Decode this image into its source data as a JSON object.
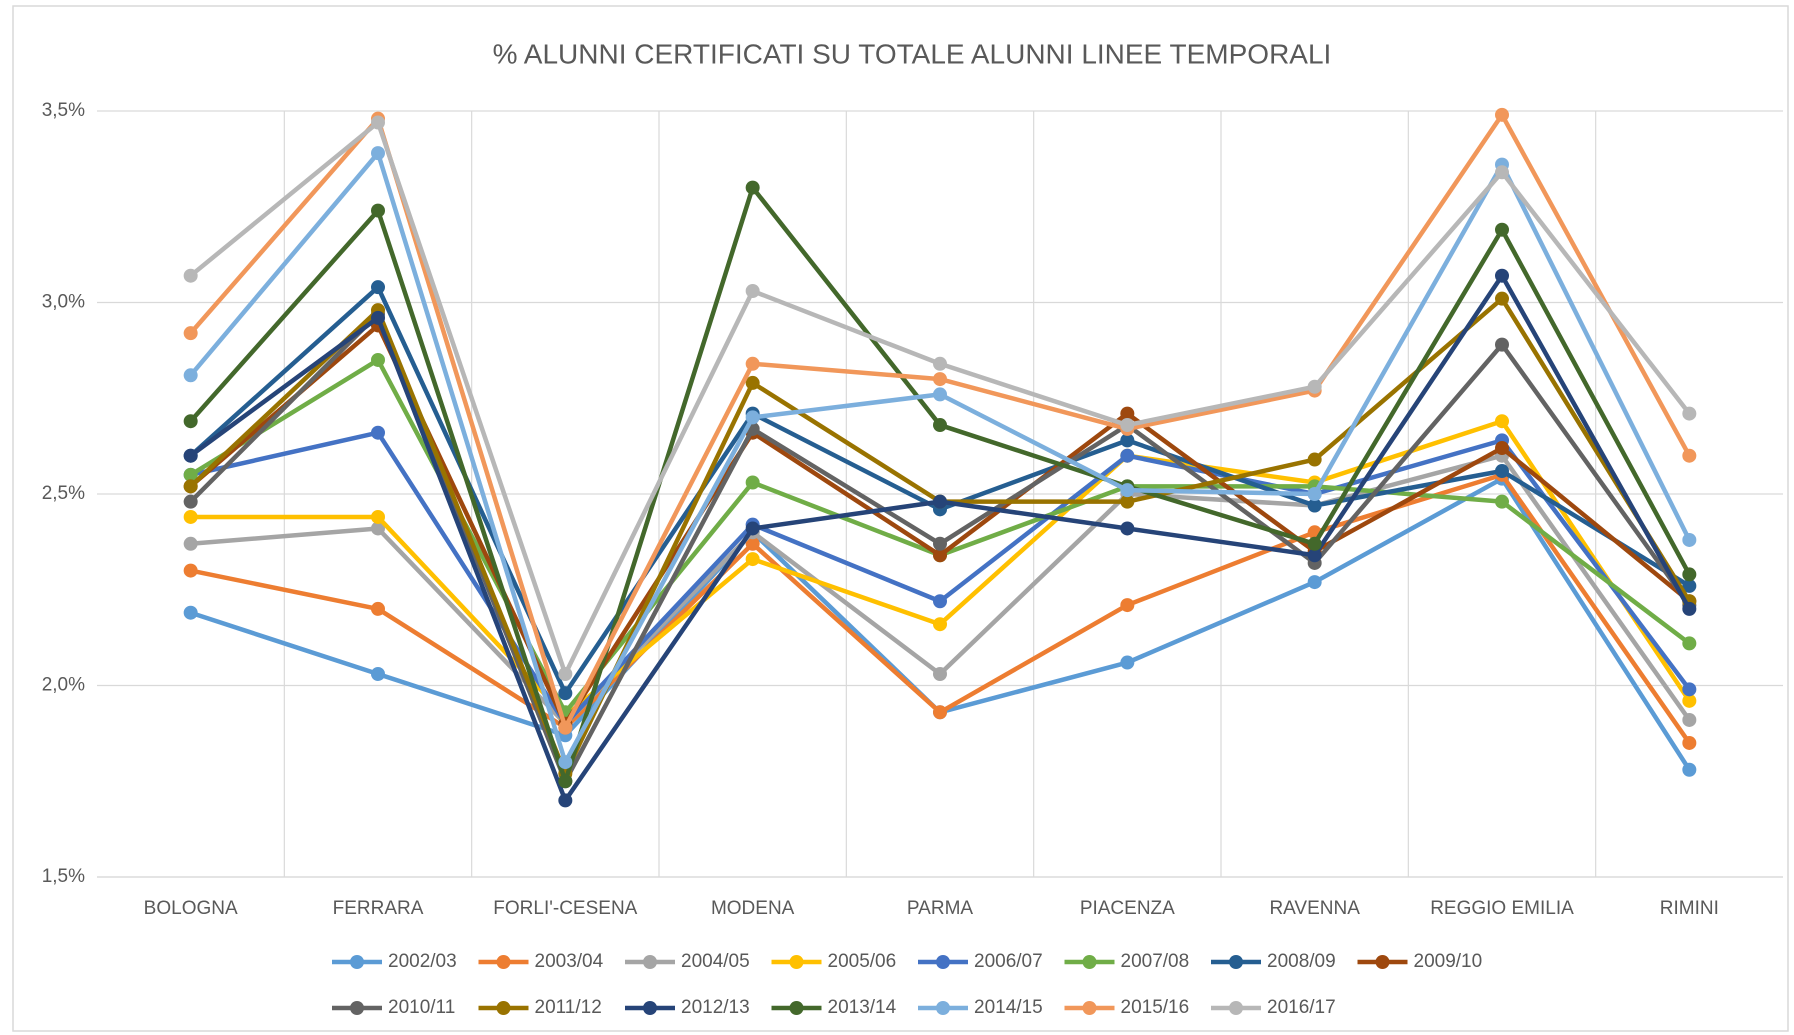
{
  "chart_data": {
    "type": "line",
    "title": "% ALUNNI CERTIFICATI SU TOTALE ALUNNI LINEE TEMPORALI",
    "categories": [
      "BOLOGNA",
      "FERRARA",
      "FORLI'-CESENA",
      "MODENA",
      "PARMA",
      "PIACENZA",
      "RAVENNA",
      "REGGIO EMILIA",
      "RIMINI"
    ],
    "ylim": [
      1.5,
      3.5
    ],
    "yticks": [
      {
        "value": 1.5,
        "label": "1,5%"
      },
      {
        "value": 2.0,
        "label": "2,0%"
      },
      {
        "value": 2.5,
        "label": "2,5%"
      },
      {
        "value": 3.0,
        "label": "3,0%"
      },
      {
        "value": 3.5,
        "label": "3,5%"
      }
    ],
    "grid": true,
    "legend": "bottom",
    "series": [
      {
        "name": "2002/03",
        "color": "#5b9bd5",
        "values": [
          2.19,
          2.03,
          1.87,
          2.4,
          1.93,
          2.06,
          2.27,
          2.54,
          1.78
        ]
      },
      {
        "name": "2003/04",
        "color": "#ed7d31",
        "values": [
          2.3,
          2.2,
          1.89,
          2.37,
          1.93,
          2.21,
          2.4,
          2.55,
          1.85
        ]
      },
      {
        "name": "2004/05",
        "color": "#a5a5a5",
        "values": [
          2.37,
          2.41,
          1.9,
          2.4,
          2.03,
          2.5,
          2.47,
          2.6,
          1.91
        ]
      },
      {
        "name": "2005/06",
        "color": "#ffc000",
        "values": [
          2.44,
          2.44,
          1.92,
          2.33,
          2.16,
          2.6,
          2.53,
          2.69,
          1.96
        ]
      },
      {
        "name": "2006/07",
        "color": "#4472c4",
        "values": [
          2.55,
          2.66,
          1.9,
          2.42,
          2.22,
          2.6,
          2.5,
          2.64,
          1.99
        ]
      },
      {
        "name": "2007/08",
        "color": "#70ad47",
        "values": [
          2.55,
          2.85,
          1.93,
          2.53,
          2.34,
          2.52,
          2.52,
          2.48,
          2.11
        ]
      },
      {
        "name": "2008/09",
        "color": "#255e91",
        "values": [
          2.6,
          3.04,
          1.98,
          2.71,
          2.46,
          2.64,
          2.47,
          2.56,
          2.26
        ]
      },
      {
        "name": "2009/10",
        "color": "#9e480e",
        "values": [
          2.52,
          2.94,
          1.9,
          2.66,
          2.34,
          2.71,
          2.35,
          2.62,
          2.22
        ]
      },
      {
        "name": "2010/11",
        "color": "#636363",
        "values": [
          2.48,
          2.97,
          1.75,
          2.67,
          2.37,
          2.68,
          2.32,
          2.89,
          2.21
        ]
      },
      {
        "name": "2011/12",
        "color": "#997300",
        "values": [
          2.52,
          2.98,
          1.77,
          2.79,
          2.48,
          2.48,
          2.59,
          3.01,
          2.22
        ]
      },
      {
        "name": "2012/13",
        "color": "#264478",
        "values": [
          2.6,
          2.96,
          1.7,
          2.41,
          2.48,
          2.41,
          2.34,
          3.07,
          2.2
        ]
      },
      {
        "name": "2013/14",
        "color": "#43682b",
        "values": [
          2.69,
          3.24,
          1.75,
          3.3,
          2.68,
          2.52,
          2.37,
          3.19,
          2.29
        ]
      },
      {
        "name": "2014/15",
        "color": "#7cafdd",
        "values": [
          2.81,
          3.39,
          1.8,
          2.7,
          2.76,
          2.51,
          2.5,
          3.36,
          2.38
        ]
      },
      {
        "name": "2015/16",
        "color": "#f1975a",
        "values": [
          2.92,
          3.48,
          1.89,
          2.84,
          2.8,
          2.67,
          2.77,
          3.49,
          2.6
        ]
      },
      {
        "name": "2016/17",
        "color": "#b7b7b7",
        "values": [
          3.07,
          3.47,
          2.03,
          3.03,
          2.84,
          2.68,
          2.78,
          3.34,
          2.71
        ]
      }
    ]
  }
}
